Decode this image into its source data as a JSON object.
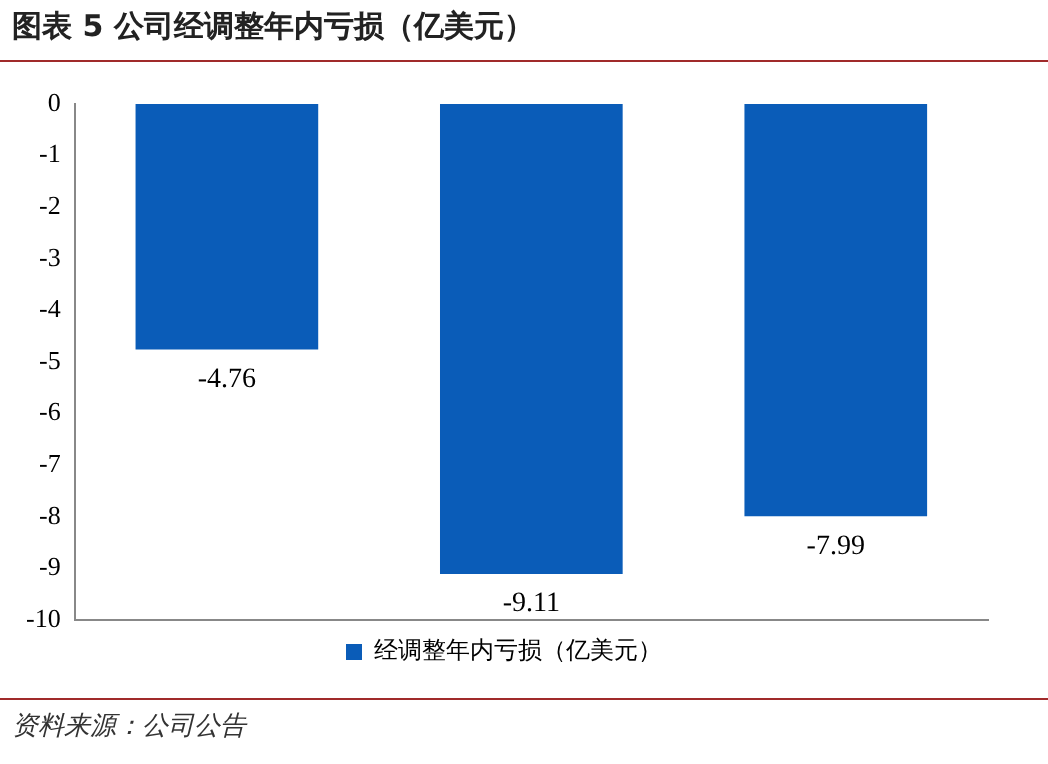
{
  "chart_data": {
    "type": "bar",
    "title": "图表 5 公司经调整年内亏损（亿美元）",
    "categories": [
      null,
      null,
      null
    ],
    "series": [
      {
        "name": "经调整年内亏损（亿美元）",
        "color": "#0a5cb8",
        "values": [
          -4.76,
          -9.11,
          -7.99
        ]
      }
    ],
    "ylim": [
      -10,
      0
    ],
    "yticks": [
      0,
      -1,
      -2,
      -3,
      -4,
      -5,
      -6,
      -7,
      -8,
      -9,
      -10
    ],
    "grid": false,
    "legend": "bottom",
    "tick_labels": "y",
    "data_labels": true,
    "annotations": [
      "资料来源：公司公告"
    ]
  }
}
